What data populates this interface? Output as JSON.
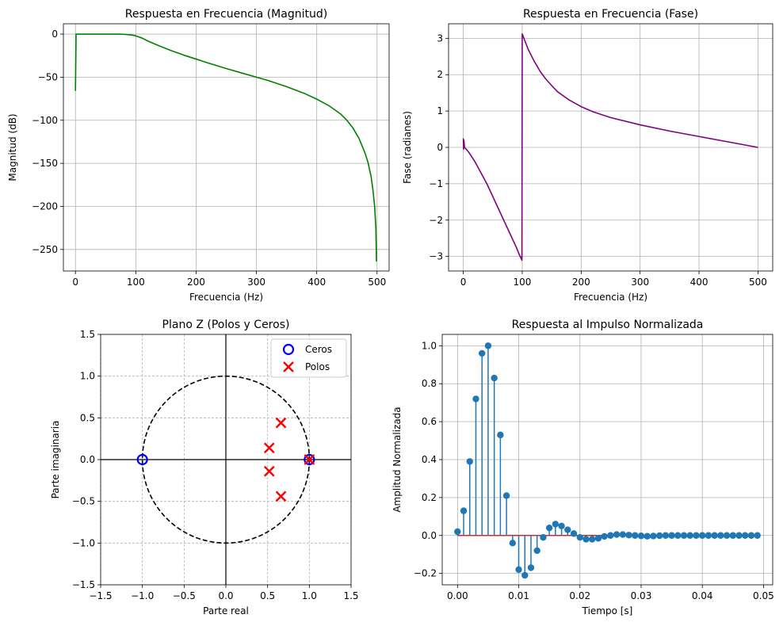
{
  "chart_data": [
    {
      "type": "line",
      "title": "Respuesta en Frecuencia (Magnitud)",
      "xlabel": "Frecuencia (Hz)",
      "ylabel": "Magnitud (dB)",
      "xlim": [
        -20,
        520
      ],
      "ylim": [
        -275,
        12
      ],
      "xticks": [
        0,
        100,
        200,
        300,
        400,
        500
      ],
      "yticks": [
        0,
        -50,
        -100,
        -150,
        -200,
        -250
      ],
      "ytick_labels": [
        "0",
        "−50",
        "−100",
        "−150",
        "−200",
        "−250"
      ],
      "grid": true,
      "color": "#008000",
      "x": [
        0,
        1,
        2,
        5,
        10,
        20,
        40,
        60,
        70,
        80,
        90,
        95,
        100,
        110,
        120,
        140,
        160,
        180,
        200,
        220,
        250,
        280,
        300,
        320,
        350,
        380,
        400,
        420,
        440,
        450,
        460,
        470,
        480,
        485,
        490,
        493,
        496,
        498,
        499
      ],
      "y": [
        -66,
        0,
        0,
        0,
        0,
        0,
        0,
        0,
        0,
        -0.2,
        -0.8,
        -1.3,
        -2,
        -4.5,
        -8,
        -14,
        -19.5,
        -24.5,
        -29,
        -33.5,
        -40,
        -46,
        -50,
        -54,
        -61,
        -69,
        -75.5,
        -83,
        -93,
        -100,
        -109,
        -121,
        -138,
        -149,
        -165,
        -180,
        -200,
        -225,
        -264
      ]
    },
    {
      "type": "line",
      "title": "Respuesta en Frecuencia (Fase)",
      "xlabel": "Frecuencia (Hz)",
      "ylabel": "Fase (radianes)",
      "xlim": [
        -25,
        525
      ],
      "ylim": [
        -3.4,
        3.4
      ],
      "xticks": [
        0,
        100,
        200,
        300,
        400,
        500
      ],
      "yticks": [
        3,
        2,
        1,
        0,
        -1,
        -2,
        -3
      ],
      "ytick_labels": [
        "3",
        "2",
        "1",
        "0",
        "−1",
        "−2",
        "−3"
      ],
      "grid": true,
      "color": "#800080",
      "x": [
        0,
        0.5,
        1,
        2,
        5,
        10,
        20,
        30,
        40,
        50,
        60,
        70,
        80,
        90,
        95,
        99.5,
        100,
        100.5,
        110,
        120,
        130,
        140,
        150,
        160,
        180,
        200,
        220,
        250,
        300,
        350,
        400,
        450,
        500
      ],
      "y": [
        0.25,
        -0.05,
        0.2,
        0.0,
        -0.05,
        -0.15,
        -0.4,
        -0.7,
        -1.0,
        -1.35,
        -1.7,
        -2.05,
        -2.4,
        -2.75,
        -2.95,
        -3.1,
        3.12,
        3.1,
        2.7,
        2.38,
        2.1,
        1.88,
        1.7,
        1.53,
        1.3,
        1.12,
        0.98,
        0.82,
        0.62,
        0.45,
        0.3,
        0.15,
        0.0
      ]
    },
    {
      "type": "scatter",
      "title": "Plano Z (Polos y Ceros)",
      "xlabel": "Parte real",
      "ylabel": "Parte imaginaria",
      "xlim": [
        -1.5,
        1.5
      ],
      "ylim": [
        -1.5,
        1.5
      ],
      "xticks": [
        -1.5,
        -1.0,
        -0.5,
        0.0,
        0.5,
        1.0,
        1.5
      ],
      "xtick_labels": [
        "−1.5",
        "−1.0",
        "−0.5",
        "0.0",
        "0.5",
        "1.0",
        "1.5"
      ],
      "yticks": [
        1.5,
        1.0,
        0.5,
        0.0,
        -0.5,
        -1.0,
        -1.5
      ],
      "ytick_labels": [
        "1.5",
        "1.0",
        "0.5",
        "0.0",
        "−0.5",
        "−1.0",
        "−1.5"
      ],
      "grid": true,
      "legend_position": "top-right",
      "series": [
        {
          "name": "Ceros",
          "marker": "circle",
          "color": "#0000ff",
          "points": [
            [
              -1.0,
              0.0
            ],
            [
              1.0,
              0.0
            ]
          ]
        },
        {
          "name": "Polos",
          "marker": "x",
          "color": "#ff0000",
          "points": [
            [
              1.0,
              0.0
            ],
            [
              0.66,
              0.44
            ],
            [
              0.66,
              -0.44
            ],
            [
              0.52,
              0.14
            ],
            [
              0.52,
              -0.14
            ]
          ]
        }
      ]
    },
    {
      "type": "stem",
      "title": "Respuesta al Impulso Normalizada",
      "xlabel": "Tiempo [s]",
      "ylabel": "Amplitud Normalizada",
      "xlim": [
        -0.0025,
        0.0515
      ],
      "ylim": [
        -0.26,
        1.06
      ],
      "xticks": [
        0.0,
        0.01,
        0.02,
        0.03,
        0.04,
        0.05
      ],
      "xtick_labels": [
        "0.00",
        "0.01",
        "0.02",
        "0.03",
        "0.04",
        "0.05"
      ],
      "yticks": [
        1.0,
        0.8,
        0.6,
        0.4,
        0.2,
        0.0,
        -0.2
      ],
      "ytick_labels": [
        "1.0",
        "0.8",
        "0.6",
        "0.4",
        "0.2",
        "0.0",
        "−0.2"
      ],
      "grid": true,
      "color": "#1f77b4",
      "x_start": 0.0,
      "x_step": 0.001,
      "values": [
        0.02,
        0.13,
        0.39,
        0.72,
        0.96,
        1.0,
        0.83,
        0.53,
        0.21,
        -0.04,
        -0.18,
        -0.21,
        -0.17,
        -0.08,
        -0.01,
        0.04,
        0.06,
        0.05,
        0.03,
        0.01,
        -0.01,
        -0.02,
        -0.02,
        -0.015,
        -0.005,
        0.0,
        0.005,
        0.005,
        0.002,
        0.0,
        -0.002,
        -0.004,
        -0.003,
        -0.001,
        0.0,
        0.0,
        0.0,
        0.0,
        0.0,
        0.0,
        0.0,
        0.0,
        0.0,
        0.0,
        0.0,
        0.0,
        0.0,
        0.0,
        0.0,
        0.0
      ]
    }
  ]
}
